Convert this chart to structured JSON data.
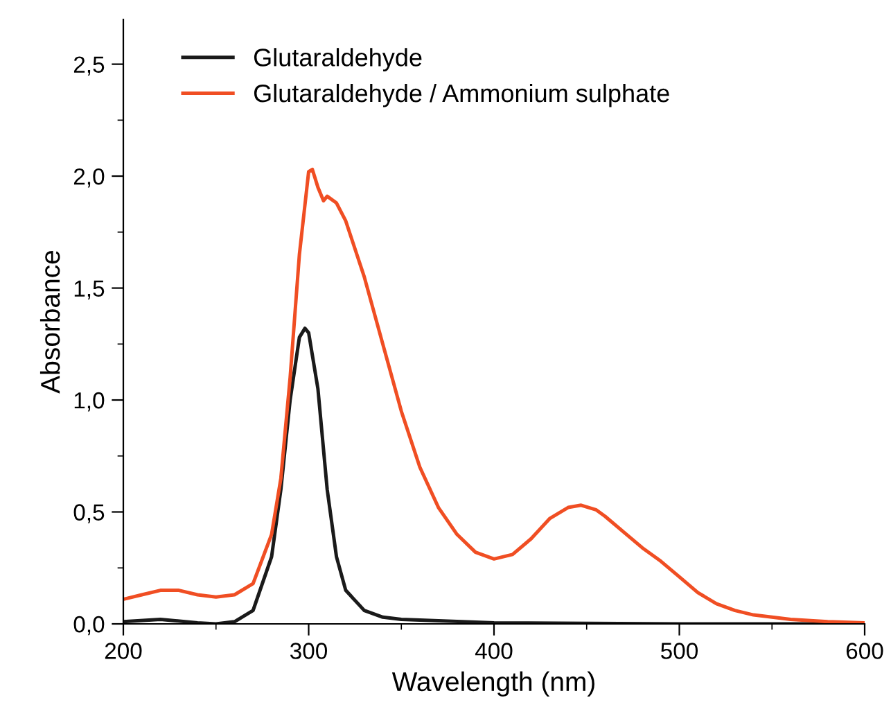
{
  "chart_data": {
    "type": "line",
    "xlabel": "Wavelength (nm)",
    "ylabel": "Absorbance",
    "xlim": [
      200,
      600
    ],
    "xticks": [
      200,
      300,
      400,
      500,
      600
    ],
    "ylim": [
      0,
      2.7
    ],
    "yticks": [
      {
        "value": 0,
        "label": "0,0"
      },
      {
        "value": 0.5,
        "label": "0,5"
      },
      {
        "value": 1.0,
        "label": "1,0"
      },
      {
        "value": 1.5,
        "label": "1,5"
      },
      {
        "value": 2.0,
        "label": "2,0"
      },
      {
        "value": 2.5,
        "label": "2,5"
      }
    ],
    "grid": false,
    "legend": "top left",
    "marker": "none",
    "line_style": "solid",
    "series": [
      {
        "name": "Glutaraldehyde",
        "color": "#1a1a1a",
        "x": [
          200,
          220,
          240,
          250,
          260,
          270,
          280,
          285,
          290,
          295,
          298,
          300,
          305,
          310,
          315,
          320,
          330,
          340,
          350,
          400,
          500,
          600
        ],
        "values": [
          0.01,
          0.02,
          0.005,
          0.0,
          0.01,
          0.06,
          0.3,
          0.6,
          1.0,
          1.28,
          1.32,
          1.3,
          1.05,
          0.6,
          0.3,
          0.15,
          0.06,
          0.03,
          0.02,
          0.005,
          0.0,
          0.0
        ]
      },
      {
        "name": "Glutaraldehyde / Ammonium sulphate",
        "color": "#f04e23",
        "x": [
          200,
          210,
          220,
          230,
          240,
          250,
          260,
          270,
          280,
          285,
          290,
          295,
          300,
          302,
          305,
          308,
          310,
          315,
          320,
          330,
          340,
          350,
          360,
          370,
          380,
          390,
          400,
          410,
          420,
          430,
          440,
          447,
          455,
          460,
          470,
          480,
          490,
          500,
          510,
          520,
          530,
          540,
          560,
          580,
          600
        ],
        "values": [
          0.11,
          0.13,
          0.15,
          0.15,
          0.13,
          0.12,
          0.13,
          0.18,
          0.4,
          0.65,
          1.1,
          1.65,
          2.02,
          2.03,
          1.95,
          1.89,
          1.91,
          1.88,
          1.8,
          1.55,
          1.25,
          0.95,
          0.7,
          0.52,
          0.4,
          0.32,
          0.29,
          0.31,
          0.38,
          0.47,
          0.52,
          0.53,
          0.51,
          0.48,
          0.41,
          0.34,
          0.28,
          0.21,
          0.14,
          0.09,
          0.06,
          0.04,
          0.02,
          0.01,
          0.005
        ]
      }
    ]
  }
}
